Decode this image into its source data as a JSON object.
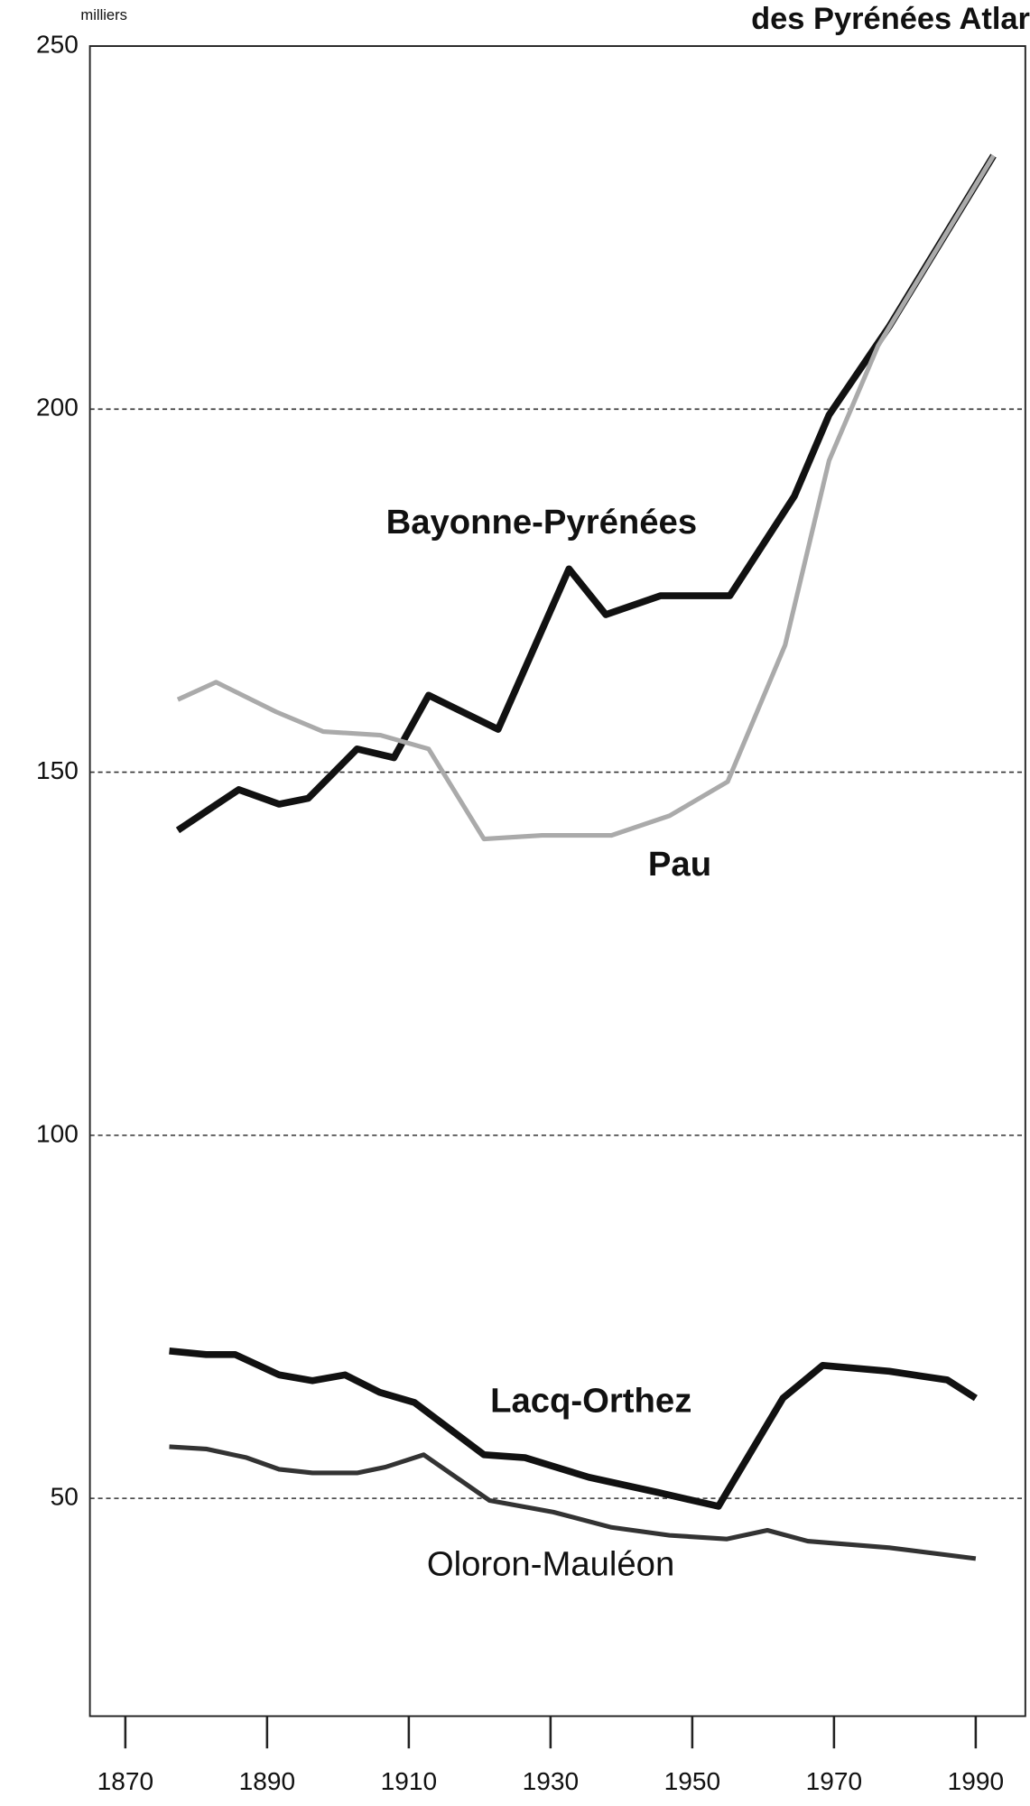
{
  "chart_data": {
    "type": "line",
    "title": "des Pyrénées Atlar",
    "y_unit": "milliers",
    "xlim": [
      1865,
      1997
    ],
    "ylim": [
      20,
      250
    ],
    "xticks": [
      1870,
      1890,
      1910,
      1930,
      1950,
      1970,
      1990
    ],
    "yticks": [
      50,
      100,
      150,
      200,
      250
    ],
    "grid": true,
    "series": [
      {
        "name": "Bayonne-Pyrénées",
        "color": "#111111",
        "x": [
          1877.4,
          1886,
          1891.7,
          1895.8,
          1902.7,
          1907.9,
          1912.8,
          1922.6,
          1932.6,
          1937.8,
          1945.5,
          1955.3,
          1964.4,
          1969.3,
          1977.8,
          1992.5
        ],
        "values": [
          142,
          147.6,
          145.6,
          146.4,
          153.2,
          152,
          160.6,
          155.9,
          178,
          171.7,
          174.3,
          174.3,
          188,
          199.2,
          211.4,
          234.9
        ]
      },
      {
        "name": "Pau",
        "color": "#aaaaaa",
        "x": [
          1877.4,
          1882.8,
          1891.3,
          1897.9,
          1906,
          1912.8,
          1920.6,
          1928.8,
          1938.6,
          1946.8,
          1955,
          1963.1,
          1969.3,
          1976.2,
          1992.5
        ],
        "values": [
          160,
          162.4,
          158.3,
          155.6,
          155.1,
          153.2,
          140.8,
          141.3,
          141.3,
          144,
          148.7,
          167.5,
          192.9,
          208.7,
          234.9
        ]
      },
      {
        "name": "Lacq-Orthez",
        "color": "#111111",
        "x": [
          1876.2,
          1881.4,
          1885.5,
          1891.7,
          1896.4,
          1901,
          1905.9,
          1910.8,
          1920.6,
          1926.4,
          1935.4,
          1945.2,
          1953.7,
          1962.8,
          1968.4,
          1977.8,
          1986,
          1990
        ],
        "values": [
          70.3,
          69.8,
          69.8,
          67,
          66.2,
          67,
          64.6,
          63.2,
          56,
          55.6,
          52.9,
          50.8,
          48.9,
          63.8,
          68.3,
          67.5,
          66.3,
          63.8
        ]
      },
      {
        "name": "Oloron-Mauléon",
        "color": "#333333",
        "x": [
          1876.2,
          1881.4,
          1887.1,
          1891.7,
          1896.4,
          1902.7,
          1906.7,
          1912.1,
          1921.4,
          1930.4,
          1938.6,
          1946.8,
          1954.9,
          1960.6,
          1966.3,
          1977.8,
          1990
        ],
        "values": [
          57.1,
          56.8,
          55.6,
          54,
          53.5,
          53.5,
          54.3,
          56,
          49.7,
          48.1,
          46,
          44.9,
          44.4,
          45.6,
          44.1,
          43.2,
          41.7
        ]
      }
    ]
  }
}
